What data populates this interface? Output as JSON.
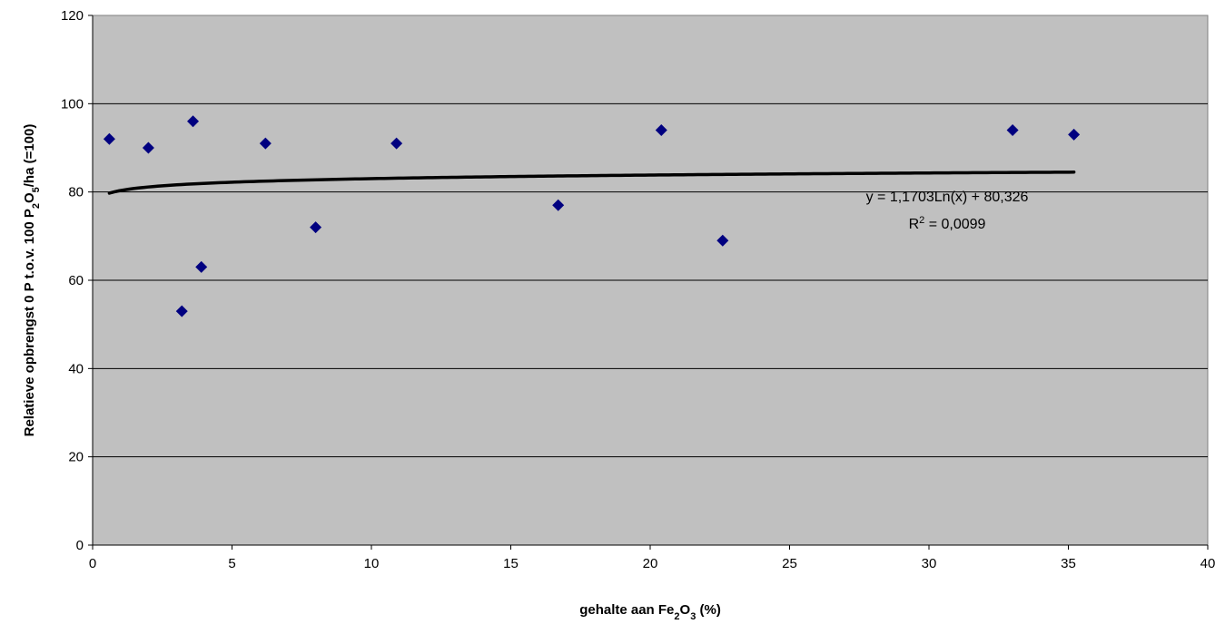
{
  "chart_data": {
    "type": "scatter",
    "title": "",
    "xlabel": {
      "pre": "gehalte aan Fe",
      "sub1": "2",
      "mid": "O",
      "sub2": "3",
      "post": " (%)"
    },
    "ylabel": {
      "pre": "Relatieve opbrengst 0 P t.o.v. 100 P",
      "sub1": "2",
      "mid": "O",
      "sub2": "5",
      "post": "/ha (=100)"
    },
    "xlim": [
      0,
      40
    ],
    "ylim": [
      0,
      120
    ],
    "xticks": [
      0,
      5,
      10,
      15,
      20,
      25,
      30,
      35,
      40
    ],
    "yticks": [
      0,
      20,
      40,
      60,
      80,
      100,
      120
    ],
    "grid": {
      "horizontal": true,
      "vertical": false
    },
    "legend": "none",
    "colors": {
      "plot_background": "#c0c0c0",
      "marker": "#000080",
      "trendline": "#000000",
      "gridline": "#000000"
    },
    "series": [
      {
        "marker": "diamond",
        "points": [
          [
            0.6,
            92
          ],
          [
            2.0,
            90
          ],
          [
            3.2,
            53
          ],
          [
            3.6,
            96
          ],
          [
            3.9,
            63
          ],
          [
            6.2,
            91
          ],
          [
            8.0,
            72
          ],
          [
            10.9,
            91
          ],
          [
            16.7,
            77
          ],
          [
            20.4,
            94
          ],
          [
            22.6,
            69
          ],
          [
            33.0,
            94
          ],
          [
            35.2,
            93
          ]
        ]
      }
    ],
    "trendline": {
      "type": "logarithmic",
      "a": 1.1703,
      "b": 80.326,
      "x_range": [
        0.6,
        35.2
      ],
      "equation": "y = 1,1703Ln(x) + 80,326",
      "r2_label": "R",
      "r2_sup": "2",
      "r2_value": " = 0,0099"
    }
  }
}
